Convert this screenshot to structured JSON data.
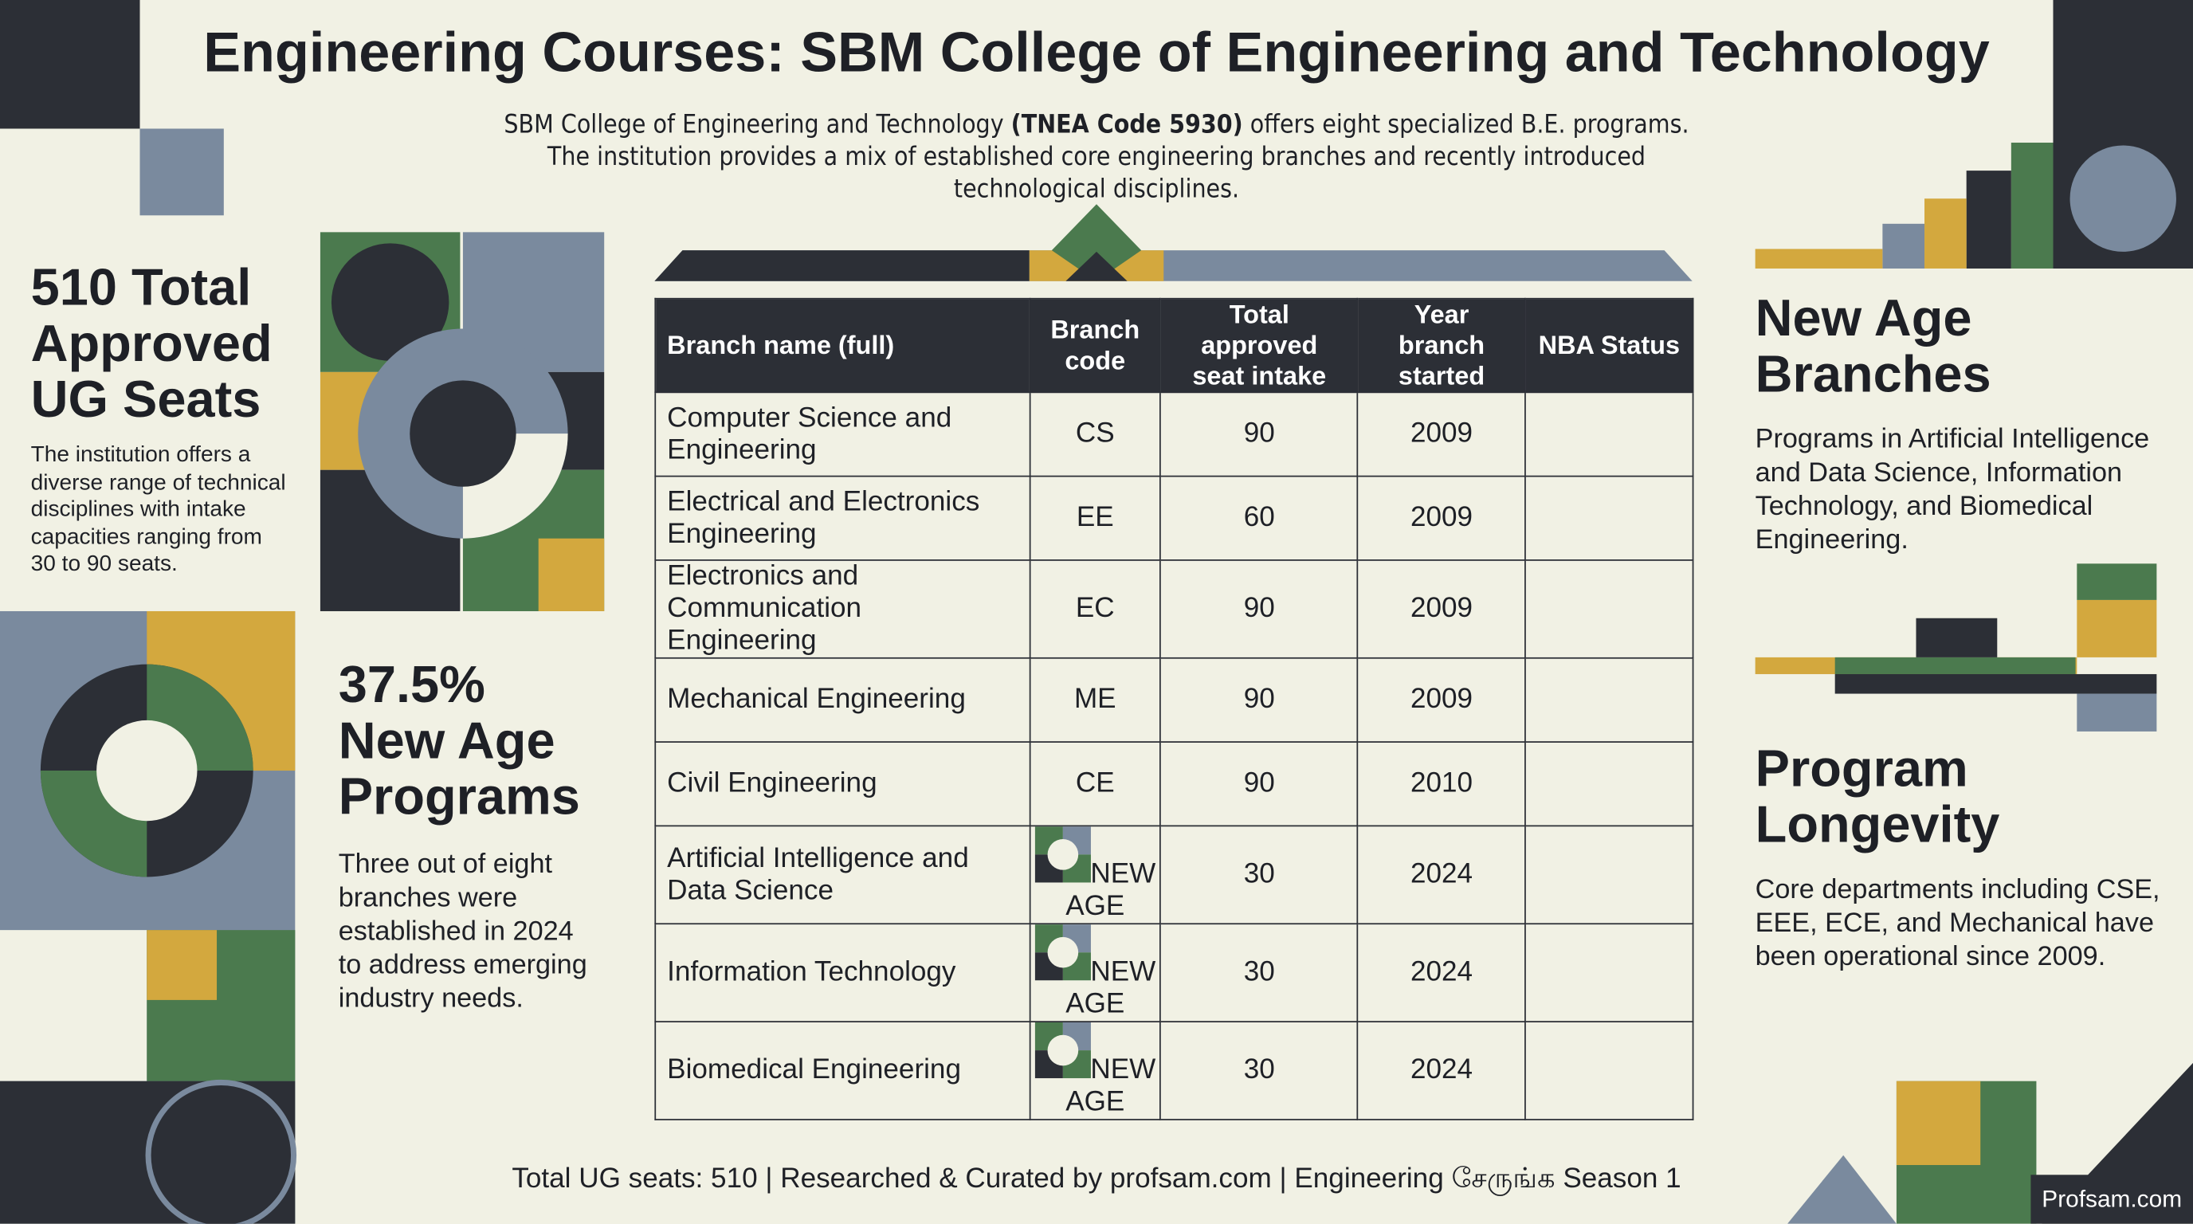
{
  "header": {
    "title": "Engineering Courses: SBM College of Engineering and Technology",
    "subtitle": {
      "lead": "SBM College of Engineering and Technology ",
      "code": "(TNEA Code 5930)",
      "rest": " offers eight specialized B.E. programs. The institution provides a mix of established core engineering branches and recently introduced technological disciplines."
    }
  },
  "left": {
    "seats": {
      "title": "510 Total Approved UG Seats",
      "body": "The institution offers a diverse range of technical disciplines with intake capacities ranging from 30 to 90 seats."
    },
    "new_age": {
      "title": "37.5% New Age Programs",
      "body": "Three out of eight branches were established in 2024 to address emerging industry needs."
    }
  },
  "right": {
    "branches": {
      "title": "New Age Branches",
      "body": "Programs in Artificial Intelligence and Data Science, Information Technology, and Biomedical Engineering."
    },
    "longevity": {
      "title": "Program Longevity",
      "body": "Core departments including CSE, EEE, ECE, and Mechanical have been operational since 2009."
    }
  },
  "table": {
    "headers": [
      "Branch name (full)",
      "Branch code",
      "Total approved seat intake",
      "Year branch started",
      "NBA Status"
    ],
    "rows": [
      [
        "Computer Science and Engineering",
        "CS",
        "90",
        "2009"
      ],
      [
        "Electrical and Electronics Engineering",
        "EE",
        "60",
        "2009"
      ],
      [
        "Electronics and Communication Engineering",
        "EC",
        "90",
        "2009"
      ],
      [
        "Mechanical Engineering",
        "ME",
        "90",
        "2009"
      ],
      [
        "Civil Engineering",
        "CE",
        "90",
        "2010"
      ],
      [
        "Artificial Intelligence and Data Science",
        "NEW AGE",
        "30",
        "2024"
      ],
      [
        "Information Technology",
        "NEW AGE",
        "30",
        "2024"
      ],
      [
        "Biomedical Engineering",
        "NEW AGE",
        "30",
        "2024"
      ]
    ]
  },
  "footer": {
    "text": "Total UG seats: 510 | Researched & Curated by profsam.com | Engineering சேருங்க Season 1",
    "watermark": "Profsam.com"
  }
}
